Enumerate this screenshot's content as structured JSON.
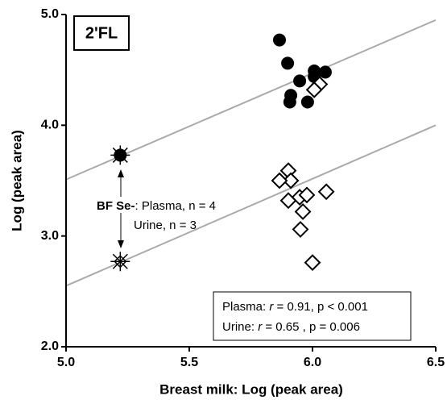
{
  "chart_data": {
    "type": "scatter",
    "x_label": "Breast milk: Log (peak area)",
    "y_label": "Log (peak area)",
    "panel_label": "2'FL",
    "xlim": [
      5.0,
      6.5
    ],
    "xticks": [
      {
        "value": 5.0,
        "label": "5.0"
      },
      5.5,
      {
        "value": 6.0,
        "label": "6.0"
      },
      6.5
    ],
    "ylim": [
      2.0,
      5.0
    ],
    "yticks": [
      {
        "value": 2.0,
        "label": "2.0"
      },
      {
        "value": 3.0,
        "label": "3.0"
      },
      {
        "value": 4.0,
        "label": "4.0"
      },
      {
        "value": 5.0,
        "label": "5.0"
      }
    ],
    "series": [
      {
        "marker": "circle",
        "color": "#000000",
        "x": [
          5.866,
          5.899,
          5.948,
          5.912,
          5.908,
          5.98,
          6.007,
          6.007,
          6.052
        ],
        "values": [
          4.77,
          4.56,
          4.4,
          4.27,
          4.21,
          4.21,
          4.49,
          4.44,
          4.48
        ]
      },
      {
        "marker": "diamond",
        "color": "#000000",
        "x": [
          6.029,
          6.007,
          5.902,
          5.912,
          5.866,
          5.902,
          5.948,
          5.977,
          5.961,
          5.951,
          6.056,
          6.0
        ],
        "values": [
          4.37,
          4.32,
          3.59,
          3.5,
          3.5,
          3.32,
          3.35,
          3.37,
          3.22,
          3.06,
          3.4,
          2.76
        ]
      }
    ],
    "fit_lines": [
      {
        "color": "#aaaaaa",
        "x": [
          5.0,
          6.5
        ],
        "values": [
          3.51,
          4.95
        ]
      },
      {
        "color": "#aaaaaa",
        "x": [
          5.0,
          6.5
        ],
        "values": [
          2.55,
          4.0
        ]
      }
    ],
    "bf_se_points": {
      "x": [
        5.22,
        5.22
      ],
      "values": [
        3.73,
        2.77
      ]
    },
    "bf_se_note": {
      "group": "BF Se-",
      "plasma": ": Plasma, n = 4",
      "urine": "Urine, n = 3"
    },
    "stats": [
      {
        "label": "Plasma:",
        "r_symbol": "r",
        "text": "= 0.91, p < 0.001"
      },
      {
        "label": "Urine:",
        "r_symbol": "r",
        "text": "= 0.65 , p = 0.006"
      }
    ]
  }
}
